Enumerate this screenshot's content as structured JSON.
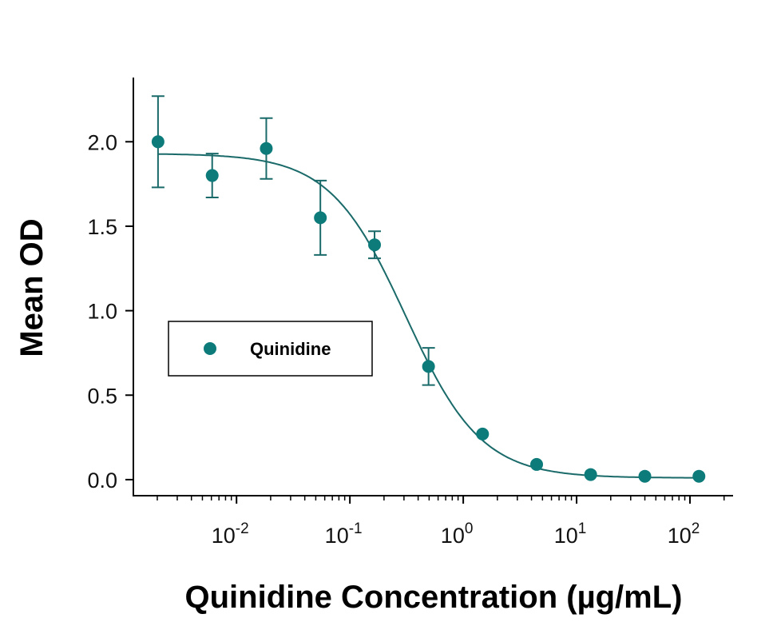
{
  "chart_data": {
    "type": "scatter",
    "title": "",
    "xlabel": "Quinidine Concentration (µg/mL)",
    "ylabel": "Mean OD",
    "x_scale": "log",
    "xlim": [
      0.00123,
      240
    ],
    "ylim": [
      -0.095,
      2.38
    ],
    "x_ticks": [
      {
        "base": "10",
        "exp": "-2",
        "value": 0.01
      },
      {
        "base": "10",
        "exp": "-1",
        "value": 0.1
      },
      {
        "base": "10",
        "exp": "0",
        "value": 1
      },
      {
        "base": "10",
        "exp": "1",
        "value": 10
      },
      {
        "base": "10",
        "exp": "2",
        "value": 100
      }
    ],
    "y_ticks": [
      {
        "label": "0.0",
        "value": 0
      },
      {
        "label": "0.5",
        "value": 0.5
      },
      {
        "label": "1.0",
        "value": 1.0
      },
      {
        "label": "1.5",
        "value": 1.5
      },
      {
        "label": "2.0",
        "value": 2.0
      }
    ],
    "grid": false,
    "legend_position": "center-left",
    "series": [
      {
        "name": "Quinidine",
        "color": "#0e7b7b",
        "x": [
          0.00203,
          0.0061,
          0.0183,
          0.0549,
          0.165,
          0.494,
          1.48,
          4.44,
          13.3,
          40,
          120
        ],
        "y": [
          2.0,
          1.8,
          1.96,
          1.55,
          1.39,
          0.67,
          0.27,
          0.09,
          0.03,
          0.02,
          0.02
        ],
        "error": [
          0.27,
          0.13,
          0.18,
          0.22,
          0.08,
          0.11,
          0.02,
          0.02,
          0.01,
          0.01,
          0.01
        ]
      }
    ],
    "fit_curve": {
      "model": "4PL",
      "top": 1.93,
      "bottom": 0.01,
      "ic50": 0.31,
      "hill": 1.3,
      "color": "#1a6a6a"
    }
  }
}
